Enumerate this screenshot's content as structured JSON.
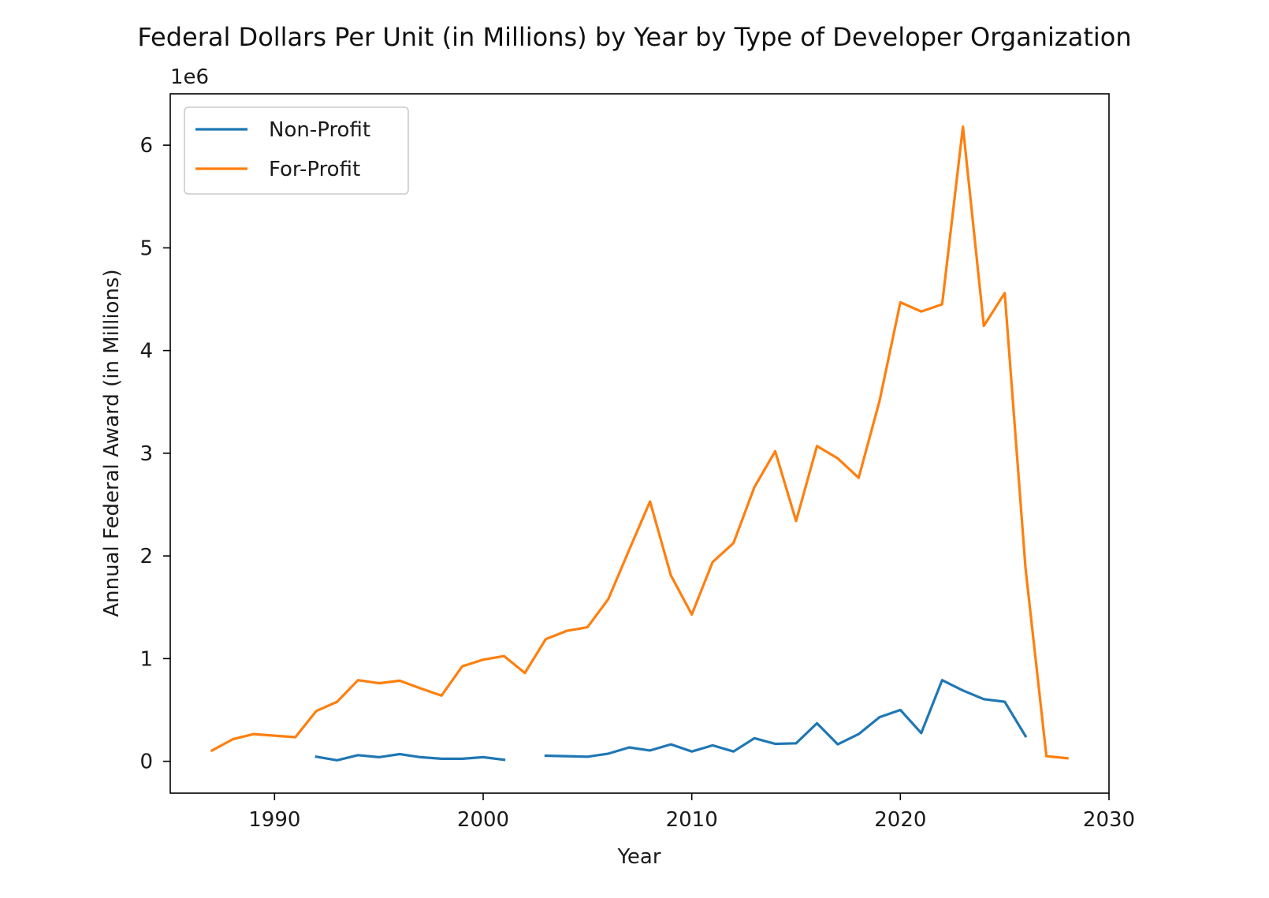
{
  "chart_data": {
    "type": "line",
    "title": "Federal Dollars Per Unit (in Millions) by Year by Type of Developer Organization",
    "xlabel": "Year",
    "ylabel": "Annual Federal Award (in Millions)",
    "y_offset_label": "1e6",
    "xlim": [
      1985,
      2030
    ],
    "ylim": [
      -310000,
      6500000
    ],
    "xticks": [
      1990,
      2000,
      2010,
      2020,
      2030
    ],
    "yticks": [
      0,
      1000000,
      2000000,
      3000000,
      4000000,
      5000000,
      6000000
    ],
    "ytick_labels": [
      "0",
      "1",
      "2",
      "3",
      "4",
      "5",
      "6"
    ],
    "grid": false,
    "legend_position": "upper-left",
    "series": [
      {
        "name": "Non-Profit",
        "color": "#1f77b4",
        "points": [
          [
            1992,
            45000
          ],
          [
            1993,
            10000
          ],
          [
            1994,
            60000
          ],
          [
            1995,
            40000
          ],
          [
            1996,
            70000
          ],
          [
            1997,
            40000
          ],
          [
            1998,
            25000
          ],
          [
            1999,
            25000
          ],
          [
            2000,
            40000
          ],
          [
            2001,
            15000
          ],
          [
            2002,
            null
          ],
          [
            2003,
            55000
          ],
          [
            2004,
            50000
          ],
          [
            2005,
            45000
          ],
          [
            2006,
            75000
          ],
          [
            2007,
            135000
          ],
          [
            2008,
            105000
          ],
          [
            2009,
            165000
          ],
          [
            2010,
            95000
          ],
          [
            2011,
            155000
          ],
          [
            2012,
            95000
          ],
          [
            2013,
            225000
          ],
          [
            2014,
            170000
          ],
          [
            2015,
            175000
          ],
          [
            2016,
            370000
          ],
          [
            2017,
            165000
          ],
          [
            2018,
            265000
          ],
          [
            2019,
            430000
          ],
          [
            2020,
            500000
          ],
          [
            2021,
            275000
          ],
          [
            2022,
            790000
          ],
          [
            2023,
            690000
          ],
          [
            2024,
            605000
          ],
          [
            2025,
            580000
          ],
          [
            2026,
            245000
          ]
        ]
      },
      {
        "name": "For-Profit",
        "color": "#ff7f0e",
        "points": [
          [
            1987,
            105000
          ],
          [
            1988,
            215000
          ],
          [
            1989,
            265000
          ],
          [
            1990,
            250000
          ],
          [
            1991,
            235000
          ],
          [
            1992,
            490000
          ],
          [
            1993,
            580000
          ],
          [
            1994,
            790000
          ],
          [
            1995,
            760000
          ],
          [
            1996,
            785000
          ],
          [
            1997,
            710000
          ],
          [
            1998,
            640000
          ],
          [
            1999,
            925000
          ],
          [
            2000,
            990000
          ],
          [
            2001,
            1025000
          ],
          [
            2002,
            860000
          ],
          [
            2003,
            1190000
          ],
          [
            2004,
            1270000
          ],
          [
            2005,
            1305000
          ],
          [
            2006,
            1580000
          ],
          [
            2007,
            2060000
          ],
          [
            2008,
            2530000
          ],
          [
            2009,
            1810000
          ],
          [
            2010,
            1430000
          ],
          [
            2011,
            1940000
          ],
          [
            2012,
            2125000
          ],
          [
            2013,
            2670000
          ],
          [
            2014,
            3020000
          ],
          [
            2015,
            2340000
          ],
          [
            2016,
            3070000
          ],
          [
            2017,
            2950000
          ],
          [
            2018,
            2760000
          ],
          [
            2019,
            3510000
          ],
          [
            2020,
            4470000
          ],
          [
            2021,
            4380000
          ],
          [
            2022,
            4450000
          ],
          [
            2023,
            6180000
          ],
          [
            2024,
            4240000
          ],
          [
            2025,
            4560000
          ],
          [
            2026,
            1880000
          ],
          [
            2027,
            50000
          ],
          [
            2028,
            30000
          ]
        ]
      }
    ]
  }
}
